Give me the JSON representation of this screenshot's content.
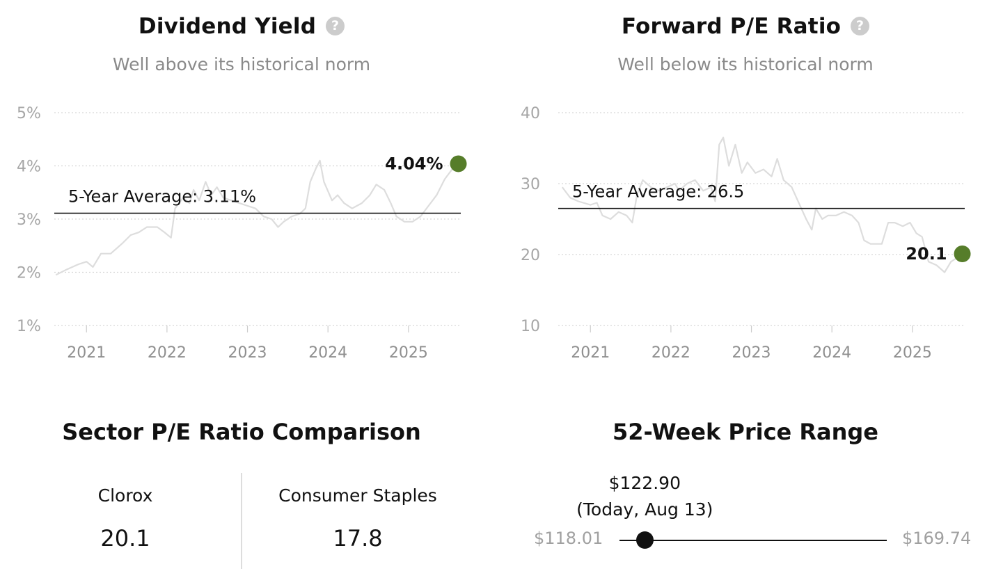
{
  "dividend_panel": {
    "title": "Dividend Yield",
    "help_icon": "question-circle-icon",
    "subtitle": "Well above its historical norm"
  },
  "pe_panel": {
    "title": "Forward P/E Ratio",
    "help_icon": "question-circle-icon",
    "subtitle": "Well below its historical norm"
  },
  "chart_data": [
    {
      "type": "line",
      "id": "dividend-yield",
      "title": "Dividend Yield",
      "subtitle": "Well above its historical norm",
      "ylim": [
        1,
        5
      ],
      "yticks": [
        1,
        2,
        3,
        4,
        5
      ],
      "ytick_labels": [
        "1%",
        "2%",
        "3%",
        "4%",
        "5%"
      ],
      "xticks": [
        2021,
        2022,
        2023,
        2024,
        2025
      ],
      "xtick_labels": [
        "2021",
        "2022",
        "2023",
        "2024",
        "2025"
      ],
      "xlim": [
        2020.6,
        2025.65
      ],
      "grid": true,
      "line_color": "#dddddd",
      "average": {
        "value": 3.11,
        "label": "5-Year Average: 3.11%"
      },
      "current": {
        "x": 2025.62,
        "y": 4.04,
        "label": "4.04%",
        "color": "#567d2a"
      },
      "series": [
        {
          "values": [
            [
              2020.62,
              1.95
            ],
            [
              2020.75,
              2.05
            ],
            [
              2020.9,
              2.15
            ],
            [
              2021.0,
              2.2
            ],
            [
              2021.08,
              2.1
            ],
            [
              2021.18,
              2.35
            ],
            [
              2021.3,
              2.35
            ],
            [
              2021.45,
              2.55
            ],
            [
              2021.55,
              2.7
            ],
            [
              2021.65,
              2.75
            ],
            [
              2021.75,
              2.85
            ],
            [
              2021.88,
              2.85
            ],
            [
              2021.97,
              2.75
            ],
            [
              2022.05,
              2.65
            ],
            [
              2022.1,
              3.2
            ],
            [
              2022.2,
              3.4
            ],
            [
              2022.28,
              3.3
            ],
            [
              2022.33,
              3.55
            ],
            [
              2022.4,
              3.35
            ],
            [
              2022.48,
              3.7
            ],
            [
              2022.55,
              3.45
            ],
            [
              2022.62,
              3.6
            ],
            [
              2022.7,
              3.4
            ],
            [
              2022.8,
              3.35
            ],
            [
              2022.9,
              3.3
            ],
            [
              2023.0,
              3.25
            ],
            [
              2023.1,
              3.2
            ],
            [
              2023.2,
              3.05
            ],
            [
              2023.3,
              3.0
            ],
            [
              2023.38,
              2.85
            ],
            [
              2023.45,
              2.95
            ],
            [
              2023.55,
              3.05
            ],
            [
              2023.65,
              3.1
            ],
            [
              2023.72,
              3.2
            ],
            [
              2023.78,
              3.7
            ],
            [
              2023.85,
              3.95
            ],
            [
              2023.9,
              4.1
            ],
            [
              2023.95,
              3.7
            ],
            [
              2024.05,
              3.35
            ],
            [
              2024.12,
              3.45
            ],
            [
              2024.2,
              3.3
            ],
            [
              2024.3,
              3.2
            ],
            [
              2024.42,
              3.3
            ],
            [
              2024.52,
              3.45
            ],
            [
              2024.6,
              3.65
            ],
            [
              2024.7,
              3.55
            ],
            [
              2024.78,
              3.3
            ],
            [
              2024.85,
              3.05
            ],
            [
              2024.95,
              2.95
            ],
            [
              2025.05,
              2.95
            ],
            [
              2025.15,
              3.05
            ],
            [
              2025.25,
              3.25
            ],
            [
              2025.35,
              3.45
            ],
            [
              2025.45,
              3.75
            ],
            [
              2025.55,
              3.95
            ],
            [
              2025.62,
              4.04
            ]
          ]
        }
      ]
    },
    {
      "type": "line",
      "id": "forward-pe",
      "title": "Forward P/E Ratio",
      "subtitle": "Well below its historical norm",
      "ylim": [
        10,
        40
      ],
      "yticks": [
        10,
        20,
        30,
        40
      ],
      "ytick_labels": [
        "10",
        "20",
        "30",
        "40"
      ],
      "xticks": [
        2021,
        2022,
        2023,
        2024,
        2025
      ],
      "xtick_labels": [
        "2021",
        "2022",
        "2023",
        "2024",
        "2025"
      ],
      "xlim": [
        2020.6,
        2025.65
      ],
      "grid": true,
      "line_color": "#dddddd",
      "average": {
        "value": 26.5,
        "label": "5-Year Average: 26.5"
      },
      "current": {
        "x": 2025.62,
        "y": 20.1,
        "label": "20.1",
        "color": "#567d2a"
      },
      "series": [
        {
          "values": [
            [
              2020.65,
              29.5
            ],
            [
              2020.75,
              28.0
            ],
            [
              2020.85,
              27.5
            ],
            [
              2021.0,
              27.0
            ],
            [
              2021.08,
              27.3
            ],
            [
              2021.15,
              25.5
            ],
            [
              2021.25,
              25.0
            ],
            [
              2021.35,
              26.0
            ],
            [
              2021.45,
              25.5
            ],
            [
              2021.52,
              24.5
            ],
            [
              2021.58,
              28.5
            ],
            [
              2021.65,
              30.5
            ],
            [
              2021.75,
              29.5
            ],
            [
              2021.85,
              29.0
            ],
            [
              2021.95,
              29.5
            ],
            [
              2022.05,
              30.0
            ],
            [
              2022.1,
              29.0
            ],
            [
              2022.2,
              30.0
            ],
            [
              2022.3,
              30.5
            ],
            [
              2022.4,
              29.0
            ],
            [
              2022.5,
              29.5
            ],
            [
              2022.55,
              27.5
            ],
            [
              2022.6,
              35.5
            ],
            [
              2022.65,
              36.5
            ],
            [
              2022.72,
              32.5
            ],
            [
              2022.8,
              35.5
            ],
            [
              2022.88,
              31.5
            ],
            [
              2022.95,
              33.0
            ],
            [
              2023.05,
              31.5
            ],
            [
              2023.15,
              32.0
            ],
            [
              2023.25,
              31.0
            ],
            [
              2023.32,
              33.5
            ],
            [
              2023.4,
              30.5
            ],
            [
              2023.5,
              29.5
            ],
            [
              2023.6,
              27.0
            ],
            [
              2023.68,
              25.0
            ],
            [
              2023.75,
              23.5
            ],
            [
              2023.8,
              26.5
            ],
            [
              2023.88,
              25.0
            ],
            [
              2023.95,
              25.5
            ],
            [
              2024.05,
              25.5
            ],
            [
              2024.15,
              26.0
            ],
            [
              2024.25,
              25.5
            ],
            [
              2024.33,
              24.5
            ],
            [
              2024.4,
              22.0
            ],
            [
              2024.48,
              21.5
            ],
            [
              2024.55,
              21.5
            ],
            [
              2024.62,
              21.5
            ],
            [
              2024.7,
              24.5
            ],
            [
              2024.78,
              24.5
            ],
            [
              2024.88,
              24.0
            ],
            [
              2024.97,
              24.5
            ],
            [
              2025.05,
              23.0
            ],
            [
              2025.12,
              22.5
            ],
            [
              2025.2,
              19.0
            ],
            [
              2025.3,
              18.5
            ],
            [
              2025.4,
              17.5
            ],
            [
              2025.48,
              19.0
            ],
            [
              2025.55,
              19.5
            ],
            [
              2025.62,
              20.1
            ]
          ]
        }
      ]
    }
  ],
  "sector": {
    "title": "Sector P/E Ratio Comparison",
    "items": [
      {
        "label": "Clorox",
        "value": "20.1"
      },
      {
        "label": "Consumer Staples",
        "value": "17.8"
      }
    ]
  },
  "price_range": {
    "title": "52-Week Price Range",
    "low_label": "$118.01",
    "high_label": "$169.74",
    "current_price": "$122.90",
    "current_note": "(Today, Aug 13)",
    "low": 118.01,
    "high": 169.74,
    "current": 122.9
  }
}
